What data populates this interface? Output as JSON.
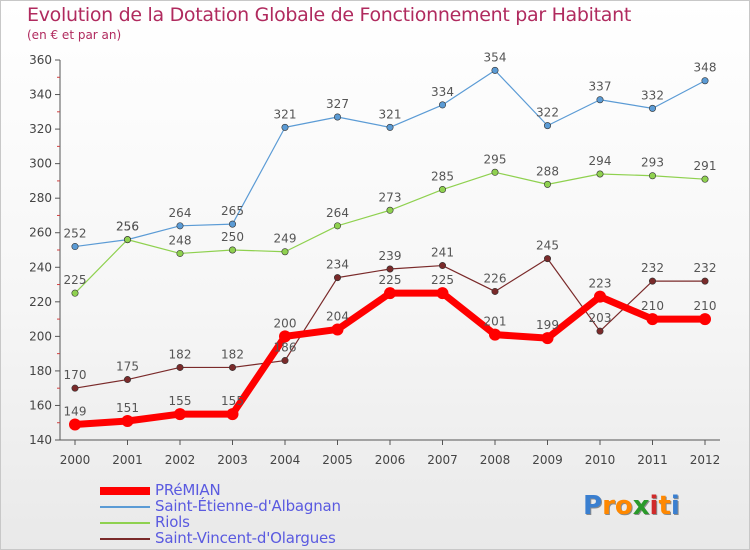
{
  "header": {
    "title": "Evolution de la Dotation Globale de Fonctionnement par Habitant",
    "subtitle": "(en € et par an)"
  },
  "logo": {
    "letters": [
      "P",
      "r",
      "o",
      "x",
      "i",
      "t",
      "i"
    ],
    "colors": [
      "#3a7fd0",
      "#ff8800",
      "#ff8800",
      "#2a9a2a",
      "#d02a2a",
      "#ff8800",
      "#3a7fd0"
    ]
  },
  "chart_data": {
    "type": "line",
    "title": "Evolution de la Dotation Globale de Fonctionnement par Habitant",
    "subtitle": "(en € et par an)",
    "x": [
      "2000",
      "2001",
      "2002",
      "2003",
      "2004",
      "2005",
      "2006",
      "2007",
      "2008",
      "2009",
      "2010",
      "2011",
      "2012"
    ],
    "ylim": [
      140,
      360
    ],
    "yticks": [
      140,
      160,
      180,
      200,
      220,
      240,
      260,
      280,
      300,
      320,
      340,
      360
    ],
    "grid": false,
    "legend_position": "bottom-left",
    "series": [
      {
        "name": "PRéMIAN",
        "color": "#ff0000",
        "values": [
          149,
          151,
          155,
          155,
          200,
          204,
          225,
          225,
          201,
          199,
          223,
          210,
          210
        ]
      },
      {
        "name": "Saint-Étienne-d'Albagnan",
        "color": "#5b9bd5",
        "values": [
          252,
          256,
          264,
          265,
          321,
          327,
          321,
          334,
          354,
          322,
          337,
          332,
          348
        ]
      },
      {
        "name": "Riols",
        "color": "#8fd14f",
        "values": [
          225,
          256,
          248,
          250,
          249,
          264,
          273,
          285,
          295,
          288,
          294,
          293,
          291
        ]
      },
      {
        "name": "Saint-Vincent-d'Olargues",
        "color": "#7a2a2a",
        "values": [
          170,
          175,
          182,
          182,
          186,
          234,
          239,
          241,
          226,
          245,
          203,
          232,
          232
        ]
      }
    ]
  }
}
